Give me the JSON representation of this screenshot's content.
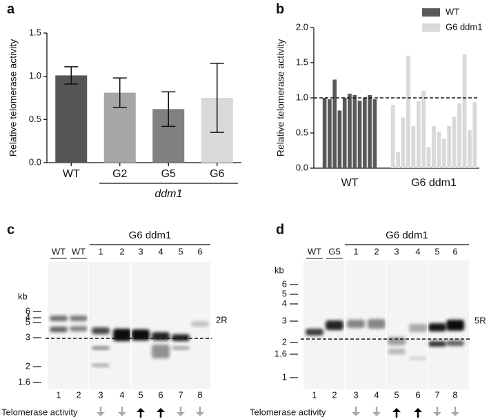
{
  "chart_data": [
    {
      "type": "bar",
      "panel": "a",
      "y_label": "Relative telomerase activity",
      "categories": [
        "WT",
        "G2",
        "G5",
        "G6"
      ],
      "values": [
        1.01,
        0.81,
        0.62,
        0.75
      ],
      "errors": [
        0.1,
        0.17,
        0.2,
        0.4
      ],
      "colors": [
        "#555555",
        "#a6a6a6",
        "#808080",
        "#d9d9d9"
      ],
      "group_label": "ddm1",
      "ylim": [
        0,
        1.5
      ],
      "yticks": [
        {
          "value": 0,
          "label": "0.0"
        },
        {
          "value": 0.5,
          "label": "0.5"
        },
        {
          "value": 1,
          "label": "1.0"
        },
        {
          "value": 1.5,
          "label": "1.5"
        }
      ]
    },
    {
      "type": "grouped-bars",
      "panel": "b",
      "y_label": "Relative telomerase activity",
      "series": [
        {
          "name": "WT",
          "color": "#595959",
          "values": [
            1.0,
            0.98,
            1.26,
            0.82,
            1.0,
            1.06,
            1.04,
            0.96,
            1.0,
            1.04,
            0.98
          ]
        },
        {
          "name": "G6 ddm1",
          "color": "#d9d9d9",
          "values": [
            0.9,
            0.23,
            0.72,
            1.6,
            0.6,
            0.95,
            1.1,
            0.3,
            0.6,
            0.52,
            0.42,
            0.6,
            0.73,
            0.92,
            1.62,
            0.54,
            0.94
          ]
        }
      ],
      "reference_line": 1.0,
      "legend": "top-right",
      "ylim": [
        0,
        2.0
      ],
      "yticks": [
        {
          "value": 0,
          "label": "0.0"
        },
        {
          "value": 0.5,
          "label": "0.5"
        },
        {
          "value": 1,
          "label": "1.0"
        },
        {
          "value": 1.5,
          "label": "1.5"
        },
        {
          "value": 2,
          "label": "2.0"
        }
      ]
    }
  ],
  "gels": [
    {
      "panel": "c",
      "group_label": "G6 ddm1",
      "lane_headers": [
        "WT",
        "WT",
        "1",
        "2",
        "3",
        "4",
        "5",
        "6"
      ],
      "lane_numbers": [
        "1",
        "2",
        "3",
        "4",
        "5",
        "6",
        "7",
        "8"
      ],
      "kb_label": "kb",
      "kb": [
        "6",
        "5",
        "4",
        "3",
        "2",
        "1.6"
      ],
      "probe": "2R",
      "activity_label": "Telomerase activity",
      "activity": [
        "down",
        "down",
        "up",
        "up",
        "down",
        "down"
      ]
    },
    {
      "panel": "d",
      "group_label": "G6 ddm1",
      "lane_headers": [
        "WT",
        "G5",
        "1",
        "2",
        "3",
        "4",
        "5",
        "6"
      ],
      "lane_numbers": [
        "1",
        "2",
        "3",
        "4",
        "5",
        "6",
        "7",
        "8"
      ],
      "kb_label": "kb",
      "kb": [
        "6",
        "5",
        "4",
        "3",
        "2",
        "1.6",
        "1"
      ],
      "probe": "5R",
      "activity_label": "Telomerase activity",
      "activity": [
        "down",
        "down",
        "up",
        "up",
        "down",
        "down"
      ]
    }
  ]
}
